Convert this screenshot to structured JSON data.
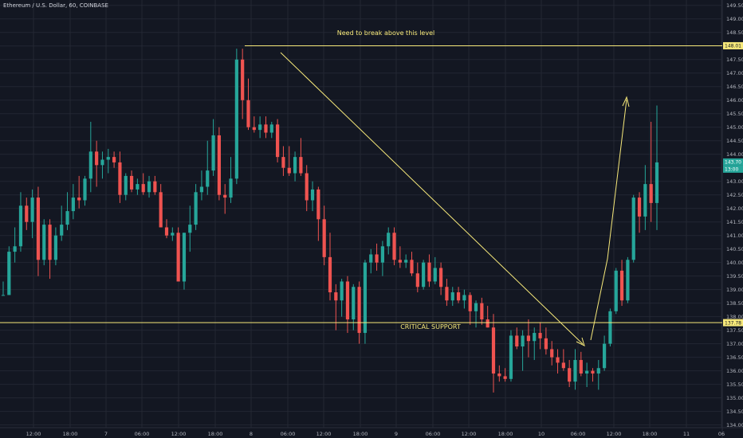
{
  "symbol": "Ethereum / U.S. Dollar, 60, COINBASE",
  "colors": {
    "background": "#131722",
    "grid": "#232733",
    "up": "#26a69a",
    "down": "#ef5350",
    "annotation": "#f7e97a",
    "axis_text": "#b2b5be"
  },
  "chart_data": {
    "type": "candlestick",
    "y_ticks": [
      134.0,
      134.5,
      135.0,
      135.5,
      136.0,
      136.5,
      137.0,
      137.5,
      138.0,
      138.5,
      139.0,
      139.5,
      140.0,
      140.5,
      141.0,
      141.5,
      142.0,
      142.5,
      143.0,
      143.5,
      144.0,
      144.5,
      145.0,
      145.5,
      146.0,
      146.5,
      147.0,
      147.5,
      148.0,
      148.5,
      149.0,
      149.5
    ],
    "ylim": [
      133.9,
      149.7
    ],
    "x_ticks": [
      "12:00",
      "18:00",
      "7",
      "06:00",
      "12:00",
      "18:00",
      "8",
      "06:00",
      "12:00",
      "18:00",
      "9",
      "06:00",
      "12:00",
      "18:00",
      "10",
      "06:00",
      "12:00",
      "18:00",
      "11",
      "06"
    ],
    "candles": [
      [
        138.8,
        139.3,
        138.8,
        138.8
      ],
      [
        138.8,
        140.6,
        138.8,
        140.4
      ],
      [
        140.4,
        141.3,
        140.0,
        140.6
      ],
      [
        140.6,
        142.6,
        140.4,
        142.1
      ],
      [
        142.1,
        142.4,
        141.2,
        141.5
      ],
      [
        141.5,
        142.7,
        140.9,
        142.4
      ],
      [
        142.4,
        142.8,
        139.5,
        140.1
      ],
      [
        140.1,
        141.6,
        139.9,
        141.4
      ],
      [
        141.4,
        141.6,
        139.4,
        140.1
      ],
      [
        140.1,
        141.3,
        139.9,
        141.0
      ],
      [
        141.0,
        142.1,
        140.8,
        141.4
      ],
      [
        141.4,
        142.6,
        141.2,
        141.9
      ],
      [
        141.9,
        142.9,
        141.6,
        142.4
      ],
      [
        142.4,
        143.2,
        142.0,
        142.3
      ],
      [
        142.3,
        143.2,
        142.1,
        143.1
      ],
      [
        143.1,
        145.2,
        142.6,
        144.1
      ],
      [
        144.1,
        144.5,
        142.8,
        143.6
      ],
      [
        143.6,
        144.1,
        143.1,
        143.8
      ],
      [
        143.8,
        144.2,
        143.3,
        143.9
      ],
      [
        143.9,
        144.1,
        143.5,
        143.7
      ],
      [
        143.7,
        144.1,
        142.2,
        142.5
      ],
      [
        142.5,
        143.3,
        142.3,
        143.2
      ],
      [
        143.2,
        143.4,
        142.6,
        142.7
      ],
      [
        142.7,
        143.1,
        142.5,
        142.9
      ],
      [
        142.9,
        143.3,
        142.5,
        142.6
      ],
      [
        142.6,
        143.2,
        142.4,
        143.0
      ],
      [
        143.0,
        143.2,
        142.5,
        142.6
      ],
      [
        142.6,
        142.9,
        141.3,
        141.3
      ],
      [
        141.3,
        141.6,
        140.9,
        141.0
      ],
      [
        141.0,
        141.3,
        140.8,
        141.1
      ],
      [
        141.1,
        141.3,
        139.3,
        139.3
      ],
      [
        139.3,
        141.1,
        139.0,
        141.1
      ],
      [
        141.1,
        142.1,
        140.4,
        141.4
      ],
      [
        141.4,
        142.9,
        141.2,
        142.6
      ],
      [
        142.6,
        143.4,
        142.3,
        142.8
      ],
      [
        142.8,
        144.5,
        142.5,
        143.4
      ],
      [
        143.4,
        145.3,
        143.2,
        144.7
      ],
      [
        144.7,
        145.0,
        142.3,
        142.5
      ],
      [
        142.5,
        142.9,
        141.8,
        142.4
      ],
      [
        142.4,
        143.9,
        142.2,
        143.1
      ],
      [
        143.1,
        147.9,
        142.9,
        147.5
      ],
      [
        147.5,
        147.9,
        145.3,
        146.0
      ],
      [
        146.0,
        146.8,
        144.9,
        145.0
      ],
      [
        145.0,
        145.4,
        144.8,
        144.9
      ],
      [
        144.9,
        145.4,
        144.6,
        145.1
      ],
      [
        145.1,
        145.4,
        144.6,
        144.8
      ],
      [
        144.8,
        145.2,
        144.6,
        145.1
      ],
      [
        145.1,
        145.3,
        143.7,
        143.9
      ],
      [
        143.9,
        144.3,
        143.2,
        143.5
      ],
      [
        143.5,
        144.3,
        143.2,
        143.3
      ],
      [
        143.3,
        144.1,
        143.0,
        143.9
      ],
      [
        143.9,
        144.6,
        143.2,
        143.3
      ],
      [
        143.3,
        143.6,
        141.9,
        142.3
      ],
      [
        142.3,
        143.0,
        141.9,
        142.7
      ],
      [
        142.7,
        142.8,
        140.8,
        141.6
      ],
      [
        141.6,
        142.1,
        139.9,
        140.2
      ],
      [
        140.2,
        141.1,
        138.6,
        138.9
      ],
      [
        138.9,
        139.2,
        137.5,
        138.6
      ],
      [
        138.6,
        139.4,
        138.0,
        139.3
      ],
      [
        139.3,
        139.5,
        137.4,
        137.9
      ],
      [
        137.9,
        139.2,
        137.5,
        139.1
      ],
      [
        139.1,
        139.3,
        137.0,
        137.4
      ],
      [
        137.4,
        140.1,
        137.0,
        140.0
      ],
      [
        140.0,
        140.5,
        139.6,
        140.3
      ],
      [
        140.3,
        140.7,
        139.7,
        140.0
      ],
      [
        140.0,
        140.8,
        139.5,
        140.6
      ],
      [
        140.6,
        141.3,
        140.3,
        141.1
      ],
      [
        141.1,
        141.3,
        139.9,
        140.1
      ],
      [
        140.1,
        140.6,
        139.8,
        140.0
      ],
      [
        140.0,
        140.3,
        139.8,
        140.1
      ],
      [
        140.1,
        140.4,
        139.5,
        139.6
      ],
      [
        139.6,
        140.0,
        138.9,
        139.1
      ],
      [
        139.1,
        140.1,
        139.0,
        140.0
      ],
      [
        140.0,
        140.3,
        139.1,
        139.3
      ],
      [
        139.3,
        140.2,
        139.2,
        139.8
      ],
      [
        139.8,
        140.0,
        138.8,
        139.1
      ],
      [
        139.1,
        139.4,
        138.4,
        138.6
      ],
      [
        138.6,
        139.1,
        138.4,
        138.9
      ],
      [
        138.9,
        139.1,
        138.5,
        138.6
      ],
      [
        138.6,
        139.0,
        138.3,
        138.8
      ],
      [
        138.8,
        138.9,
        137.7,
        138.2
      ],
      [
        138.2,
        138.6,
        137.6,
        138.5
      ],
      [
        138.5,
        138.7,
        137.7,
        137.9
      ],
      [
        137.9,
        138.4,
        137.6,
        137.6
      ],
      [
        137.6,
        138.1,
        135.2,
        135.9
      ],
      [
        135.9,
        136.2,
        135.6,
        135.8
      ],
      [
        135.8,
        136.1,
        135.6,
        135.7
      ],
      [
        135.7,
        137.5,
        135.6,
        137.3
      ],
      [
        137.3,
        137.6,
        136.8,
        136.9
      ],
      [
        136.9,
        137.5,
        136.0,
        137.3
      ],
      [
        137.3,
        137.9,
        136.5,
        137.1
      ],
      [
        137.1,
        137.6,
        136.4,
        137.4
      ],
      [
        137.4,
        137.8,
        136.8,
        137.2
      ],
      [
        137.2,
        137.6,
        136.6,
        136.8
      ],
      [
        136.8,
        137.1,
        136.2,
        136.5
      ],
      [
        136.5,
        136.8,
        135.9,
        136.3
      ],
      [
        136.3,
        136.8,
        136.0,
        136.1
      ],
      [
        136.1,
        136.4,
        135.4,
        135.6
      ],
      [
        135.6,
        136.8,
        135.3,
        136.4
      ],
      [
        136.4,
        136.7,
        135.8,
        135.9
      ],
      [
        135.9,
        136.3,
        135.4,
        136.0
      ],
      [
        136.0,
        136.1,
        135.6,
        135.9
      ],
      [
        135.9,
        136.4,
        135.3,
        136.1
      ],
      [
        136.1,
        137.3,
        136.0,
        137.0
      ],
      [
        137.0,
        138.3,
        136.9,
        138.2
      ],
      [
        138.2,
        139.8,
        138.1,
        139.7
      ],
      [
        139.7,
        140.1,
        138.4,
        138.6
      ],
      [
        138.6,
        140.2,
        138.5,
        140.1
      ],
      [
        140.1,
        142.5,
        140.0,
        142.4
      ],
      [
        142.4,
        142.6,
        141.1,
        141.7
      ],
      [
        141.7,
        143.6,
        141.2,
        142.9
      ],
      [
        142.9,
        145.2,
        141.5,
        142.2
      ],
      [
        142.2,
        145.8,
        141.2,
        143.7
      ]
    ],
    "annotations": {
      "resistance": {
        "value": 148.01,
        "label": "Need to break above this level"
      },
      "support": {
        "value": 137.78,
        "label": "CRITICAL SUPPORT"
      },
      "price_tags": [
        "148.01",
        "137.78",
        "143.70",
        "13:00"
      ]
    }
  },
  "y_tick_labels": [
    "149.50",
    "149.00",
    "148.50",
    "148.00",
    "147.50",
    "147.00",
    "146.50",
    "146.00",
    "145.50",
    "145.00",
    "144.50",
    "144.00",
    "143.50",
    "143.00",
    "142.50",
    "142.00",
    "141.50",
    "141.00",
    "140.50",
    "140.00",
    "139.50",
    "139.00",
    "138.50",
    "138.00",
    "137.50",
    "137.00",
    "136.50",
    "136.00",
    "135.50",
    "135.00",
    "134.50",
    "134.00"
  ]
}
